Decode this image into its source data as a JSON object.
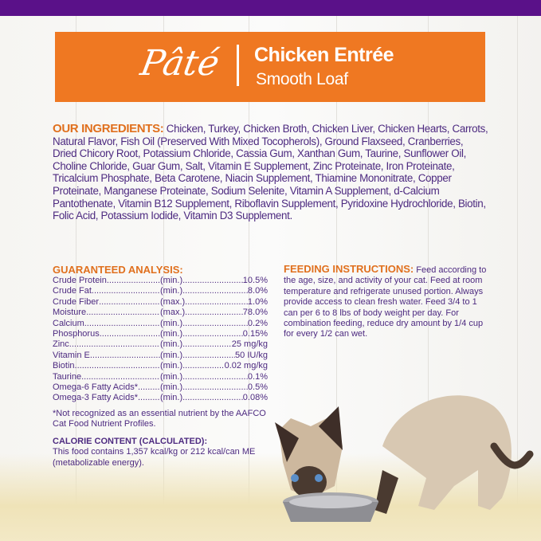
{
  "banner": {
    "style": "Pâté",
    "title": "Chicken Entrée",
    "subtitle": "Smooth Loaf"
  },
  "ingredients": {
    "heading": "OUR INGREDIENTS:",
    "text": " Chicken, Turkey, Chicken Broth, Chicken Liver, Chicken Hearts, Carrots, Natural Flavor, Fish Oil (Preserved With Mixed Tocopherols), Ground Flaxseed, Cranberries, Dried Chicory Root, Potassium Chloride, Cassia Gum, Xanthan Gum, Taurine, Sunflower Oil, Choline Chloride, Guar Gum, Salt, Vitamin E Supplement, Zinc Proteinate, Iron Proteinate, Tricalcium Phosphate, Beta Carotene, Niacin Supplement, Thiamine Mononitrate, Copper Proteinate, Manganese Proteinate, Sodium Selenite, Vitamin A Supplement, d-Calcium Pantothenate, Vitamin B12 Supplement, Riboflavin Supplement, Pyridoxine Hydrochloride, Biotin, Folic Acid, Potassium Iodide, Vitamin D3 Supplement."
  },
  "analysis": {
    "heading": "GUARANTEED ANALYSIS:",
    "rows": [
      {
        "name": "Crude Protein",
        "type": "(min.)",
        "value": "10.5%"
      },
      {
        "name": "Crude Fat",
        "type": "(min.)",
        "value": "8.0%"
      },
      {
        "name": "Crude Fiber",
        "type": "(max.)",
        "value": "1.0%"
      },
      {
        "name": "Moisture",
        "type": "(max.)",
        "value": "78.0%"
      },
      {
        "name": "Calcium",
        "type": "(min.)",
        "value": "0.2%"
      },
      {
        "name": "Phosphorus",
        "type": "(min.)",
        "value": "0.15%"
      },
      {
        "name": "Zinc",
        "type": "(min.)",
        "value": "25 mg/kg"
      },
      {
        "name": "Vitamin E",
        "type": "(min.)",
        "value": "50 IU/kg"
      },
      {
        "name": "Biotin",
        "type": "(min.)",
        "value": "0.02 mg/kg"
      },
      {
        "name": "Taurine",
        "type": "(min.)",
        "value": "0.1%"
      },
      {
        "name": "Omega-6 Fatty Acids*",
        "type": "(min.)",
        "value": "0.5%"
      },
      {
        "name": "Omega-3 Fatty Acids*",
        "type": "(min.)",
        "value": "0.08%"
      }
    ],
    "note": "*Not recognized as an essential nutrient by the AAFCO Cat Food Nutrient Profiles.",
    "calorie_heading": "CALORIE CONTENT (CALCULATED):",
    "calorie_text": "This food contains 1,357 kcal/kg or 212 kcal/can ME (metabolizable energy)."
  },
  "feeding": {
    "heading": "FEEDING INSTRUCTIONS:",
    "text": " Feed according to the age, size, and activity of your cat. Feed at room temperature and refrigerate unused portion. Always provide access to clean fresh water. Feed 3/4 to 1 can per 6 to 8 lbs of body weight per day. For combination feeding, reduce dry amount by 1/4 cup for every 1/2 can wet."
  },
  "colors": {
    "purple": "#5a1189",
    "orange": "#ef7822",
    "text": "#4d2a80"
  }
}
